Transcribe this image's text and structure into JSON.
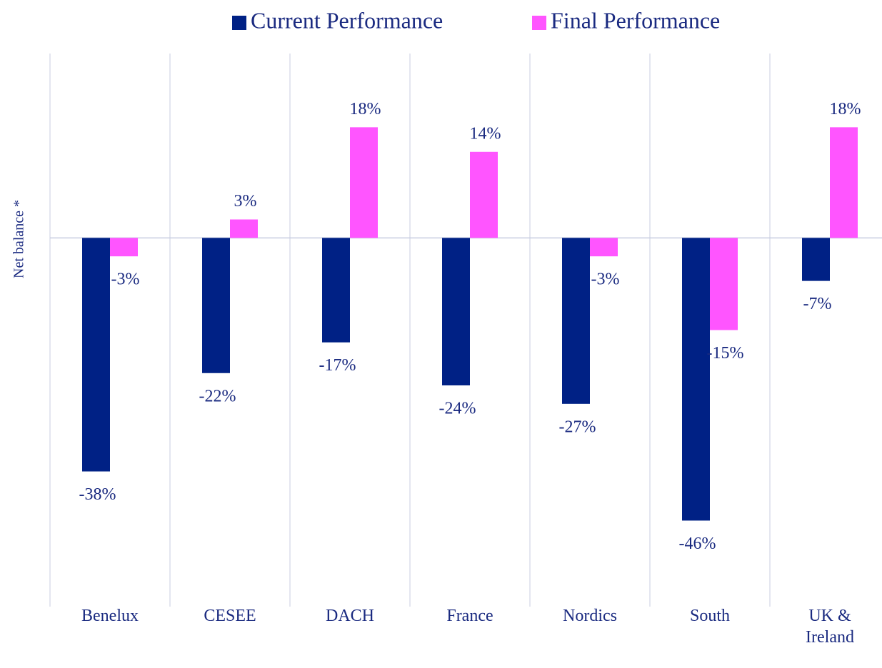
{
  "chart_data": {
    "type": "bar",
    "y_label": "Net balance *",
    "categories": [
      "Benelux",
      "CESEE",
      "DACH",
      "France",
      "Nordics",
      "South",
      "UK & Ireland"
    ],
    "series": [
      {
        "name": "Current Performance",
        "color": "#002185",
        "values": [
          -38,
          -22,
          -17,
          -24,
          -27,
          -46,
          -7
        ],
        "value_labels": [
          "-38%",
          "-22%",
          "-17%",
          "-24%",
          "-27%",
          "-46%",
          "-7%"
        ]
      },
      {
        "name": "Final Performance",
        "color": "#ff55ff",
        "values": [
          -3,
          3,
          18,
          14,
          -3,
          -15,
          18
        ],
        "value_labels": [
          "-3%",
          "3%",
          "18%",
          "14%",
          "-3%",
          "-15%",
          "18%"
        ]
      }
    ],
    "ylim": [
      -60,
      30
    ],
    "legend": "top"
  }
}
